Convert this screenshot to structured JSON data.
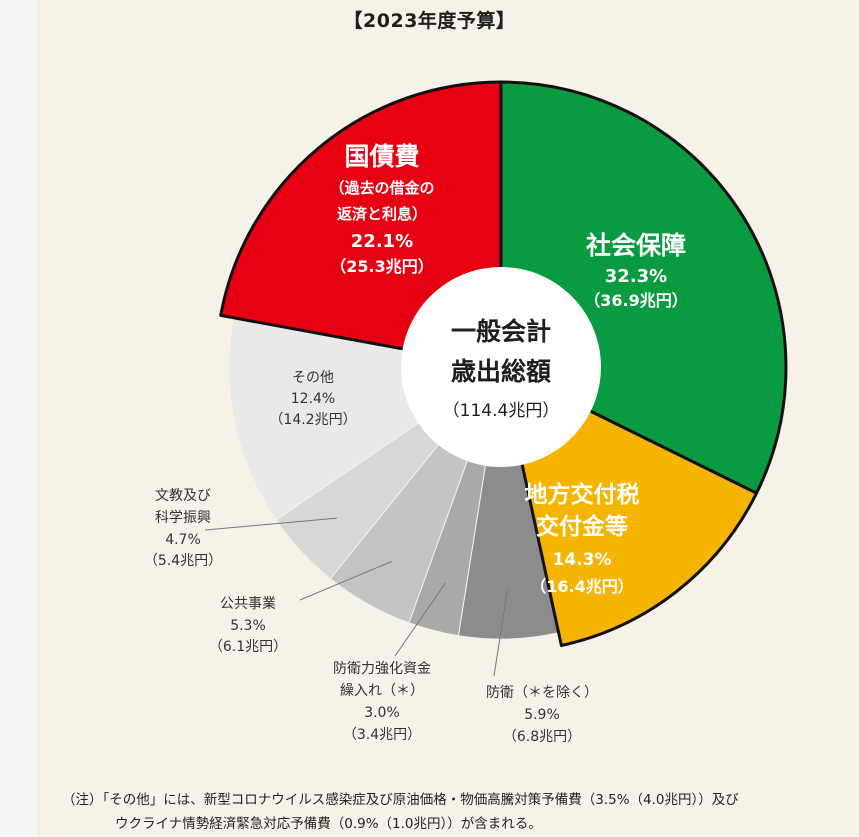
{
  "chart_data": {
    "type": "pie",
    "title": "【2023年度予算】",
    "center_label": {
      "line1": "一般会計",
      "line2": "歳出総額",
      "line3": "（114.4兆円）"
    },
    "slices": [
      {
        "key": "social",
        "label": "社会保障",
        "percent": 32.3,
        "amount": "（36.9兆円）",
        "value_trillion_yen": 36.9,
        "color": "#0a9b40"
      },
      {
        "key": "local",
        "label": "地方交付税交付金等",
        "percent": 14.3,
        "amount": "（16.4兆円）",
        "value_trillion_yen": 16.4,
        "color": "#f4b400"
      },
      {
        "key": "defense",
        "label": "防衛（＊を除く）",
        "percent": 5.9,
        "amount": "（6.8兆円）",
        "value_trillion_yen": 6.8,
        "color": "#8c8c8c"
      },
      {
        "key": "defense_fund",
        "label": "防衛力強化資金繰入れ（＊）",
        "percent": 3.0,
        "amount": "（3.4兆円）",
        "value_trillion_yen": 3.4,
        "color": "#a9a9a9"
      },
      {
        "key": "public_works",
        "label": "公共事業",
        "percent": 5.3,
        "amount": "（6.1兆円）",
        "value_trillion_yen": 6.1,
        "color": "#c4c4c4"
      },
      {
        "key": "education",
        "label": "文教及び科学振興",
        "percent": 4.7,
        "amount": "（5.4兆円）",
        "value_trillion_yen": 5.4,
        "color": "#d7d7d7"
      },
      {
        "key": "other",
        "label": "その他",
        "percent": 12.4,
        "amount": "（14.2兆円）",
        "value_trillion_yen": 14.2,
        "color": "#e9e9e9"
      },
      {
        "key": "debt",
        "label": "国債費",
        "sublabel_line1": "（過去の借金の",
        "sublabel_line2": "返済と利息）",
        "percent": 22.1,
        "amount": "（25.3兆円）",
        "value_trillion_yen": 25.3,
        "color": "#e60012"
      }
    ],
    "label_lines": {
      "local_line1": "地方交付税",
      "local_line2": "交付金等",
      "education_line1": "文教及び",
      "education_line2": "科学振興",
      "defense_fund_line1": "防衛力強化資金",
      "defense_fund_line2": "繰入れ（＊）"
    }
  },
  "note": {
    "line1": "（注）「その他」には、新型コロナウイルス感染症及び原油価格・物価高騰対策予備費（3.5%（4.0兆円））及び",
    "line2": "ウクライナ情勢経済緊急対応予備費（0.9%（1.0兆円））が含まれる。"
  }
}
